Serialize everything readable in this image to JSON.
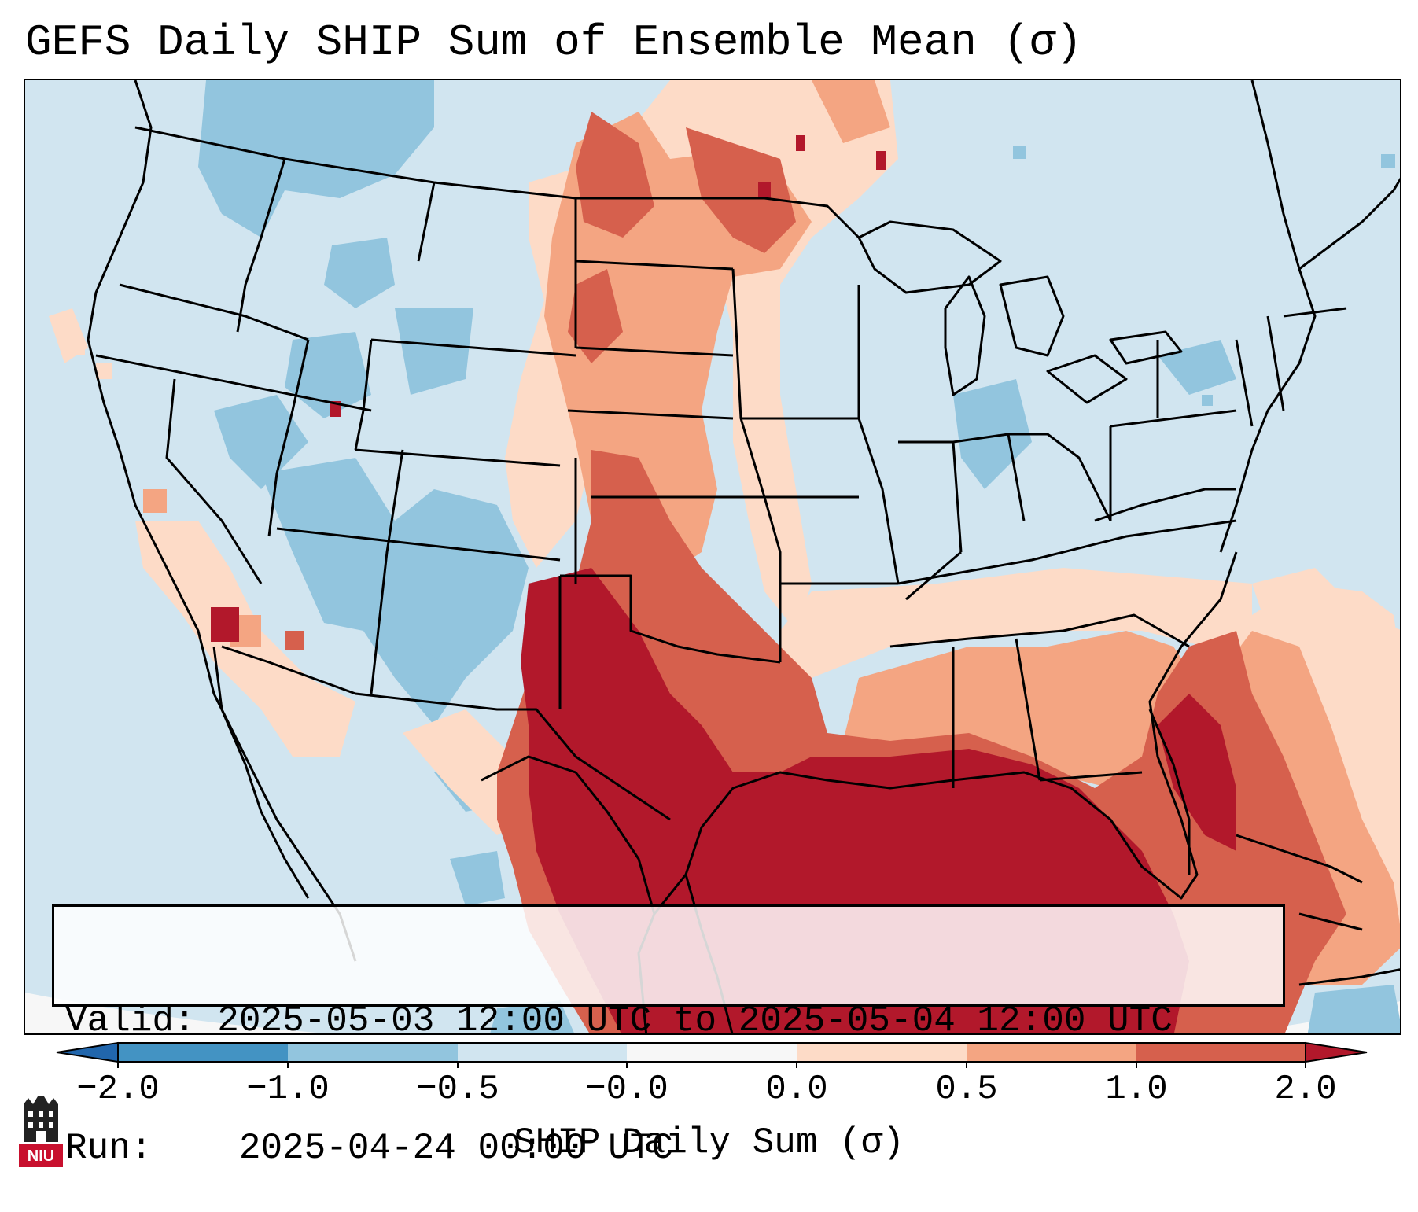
{
  "title": "GEFS Daily SHIP Sum of Ensemble Mean (σ)",
  "info": {
    "valid_label": "Valid:",
    "valid_value": "2025-05-03 12:00 UTC to 2025-05-04 12:00 UTC",
    "run_label": "Run:",
    "run_value": "2025-04-24 00:00 UTC"
  },
  "colorbar": {
    "label": "SHIP Daily Sum (σ)",
    "ticks": [
      "−2.0",
      "−1.0",
      "−0.5",
      "−0.0",
      "0.0",
      "0.5",
      "1.0",
      "2.0"
    ],
    "bins": [
      {
        "range": "< −2.0",
        "color": "#2166ac"
      },
      {
        "range": "−2.0 to −1.0",
        "color": "#4393c3"
      },
      {
        "range": "−1.0 to −0.5",
        "color": "#92c5de"
      },
      {
        "range": "−0.5 to −0.0",
        "color": "#d1e5f0"
      },
      {
        "range": "−0.0 to 0.0",
        "color": "#f7f7f7"
      },
      {
        "range": "0.0 to 0.5",
        "color": "#fddbc7"
      },
      {
        "range": "0.5 to 1.0",
        "color": "#f4a582"
      },
      {
        "range": "1.0 to 2.0",
        "color": "#d6604d"
      },
      {
        "range": "> 2.0",
        "color": "#b2182b"
      }
    ],
    "extend": "both"
  },
  "logo": {
    "text": "NIU",
    "icon": "niu-building-icon"
  }
}
